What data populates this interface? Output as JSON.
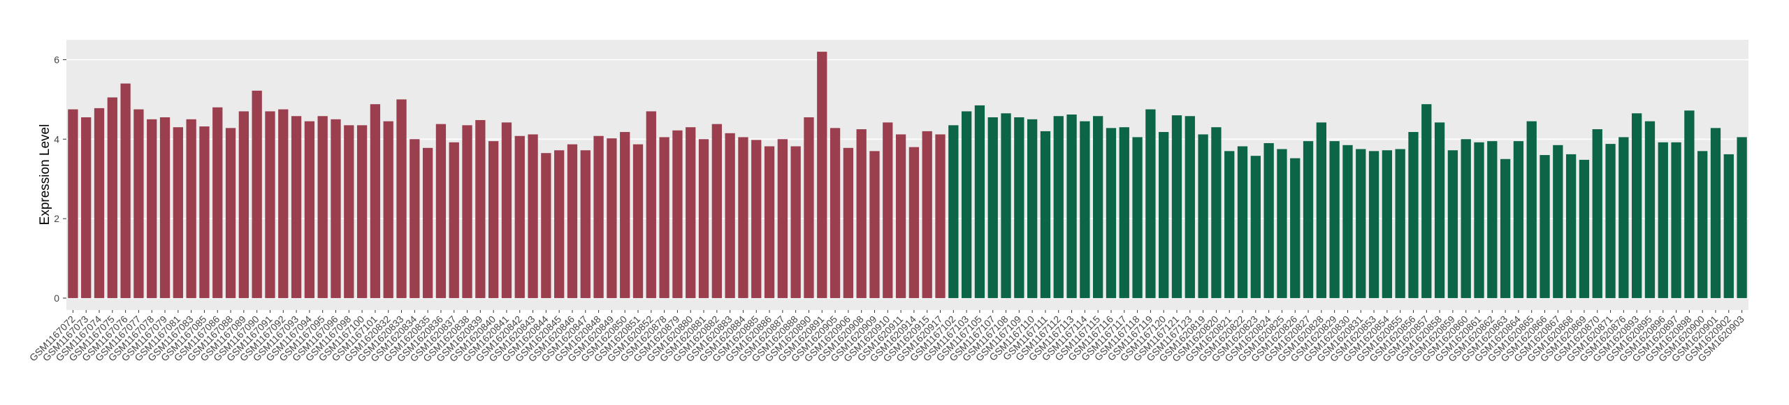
{
  "chart_data": {
    "type": "bar",
    "y_label": "Expression Level",
    "ylim": [
      -0.3,
      6.5
    ],
    "yticks": [
      0,
      2,
      4,
      6
    ],
    "grid": true,
    "series": [
      {
        "color": "#9b3f4f",
        "categories": [
          "GSM1167072",
          "GSM1167073",
          "GSM1167074",
          "GSM1167075",
          "GSM1167076",
          "GSM1167077",
          "GSM1167078",
          "GSM1167079",
          "GSM1167081",
          "GSM1167083",
          "GSM1167085",
          "GSM1167086",
          "GSM1167088",
          "GSM1167089",
          "GSM1167090",
          "GSM1167091",
          "GSM1167092",
          "GSM1167093",
          "GSM1167094",
          "GSM1167095",
          "GSM1167096",
          "GSM1167098",
          "GSM1167100",
          "GSM1167101",
          "GSM1620832",
          "GSM1620833",
          "GSM1620834",
          "GSM1620835",
          "GSM1620836",
          "GSM1620837",
          "GSM1620838",
          "GSM1620839",
          "GSM1620840",
          "GSM1620841",
          "GSM1620842",
          "GSM1620843",
          "GSM1620844",
          "GSM1620845",
          "GSM1620846",
          "GSM1620847",
          "GSM1620848",
          "GSM1620849",
          "GSM1620850",
          "GSM1620851",
          "GSM1620852",
          "GSM1620878",
          "GSM1620879",
          "GSM1620880",
          "GSM1620881",
          "GSM1620882",
          "GSM1620883",
          "GSM1620884",
          "GSM1620885",
          "GSM1620886",
          "GSM1620887",
          "GSM1620888",
          "GSM1620890",
          "GSM1620891",
          "GSM1620905",
          "GSM1620906",
          "GSM1620908",
          "GSM1620909",
          "GSM1620910",
          "GSM1620911",
          "GSM1620914",
          "GSM1620915",
          "GSM1620917"
        ],
        "values": [
          4.75,
          4.55,
          4.78,
          5.05,
          5.4,
          4.75,
          4.5,
          4.55,
          4.3,
          4.5,
          4.32,
          4.8,
          4.28,
          4.7,
          5.22,
          4.7,
          4.75,
          4.58,
          4.45,
          4.58,
          4.5,
          4.35,
          4.35,
          4.88,
          4.45,
          5.0,
          4.0,
          3.78,
          4.38,
          3.92,
          4.35,
          4.48,
          3.95,
          4.42,
          4.08,
          4.12,
          3.65,
          3.72,
          3.87,
          3.72,
          4.08,
          4.02,
          4.18,
          3.87,
          4.7,
          4.05,
          4.22,
          4.3,
          4.0,
          4.38,
          4.15,
          4.05,
          3.98,
          3.82,
          4.0,
          3.82,
          4.55,
          6.2,
          4.28,
          3.78,
          4.25,
          3.7,
          4.42,
          4.12,
          3.8,
          4.2,
          4.12
        ]
      },
      {
        "color": "#0b6546",
        "categories": [
          "GSM1167102",
          "GSM1167103",
          "GSM1167105",
          "GSM1167107",
          "GSM1167108",
          "GSM1167109",
          "GSM1167110",
          "GSM1167111",
          "GSM1167112",
          "GSM1167113",
          "GSM1167114",
          "GSM1167115",
          "GSM1167116",
          "GSM1167117",
          "GSM1167118",
          "GSM1167119",
          "GSM1167120",
          "GSM1167121",
          "GSM1167123",
          "GSM1620819",
          "GSM1620820",
          "GSM1620821",
          "GSM1620822",
          "GSM1620823",
          "GSM1620824",
          "GSM1620825",
          "GSM1620826",
          "GSM1620827",
          "GSM1620828",
          "GSM1620829",
          "GSM1620830",
          "GSM1620831",
          "GSM1620853",
          "GSM1620854",
          "GSM1620855",
          "GSM1620856",
          "GSM1620857",
          "GSM1620858",
          "GSM1620859",
          "GSM1620860",
          "GSM1620861",
          "GSM1620862",
          "GSM1620863",
          "GSM1620864",
          "GSM1620865",
          "GSM1620866",
          "GSM1620867",
          "GSM1620868",
          "GSM1620869",
          "GSM1620870",
          "GSM1620871",
          "GSM1620876",
          "GSM1620893",
          "GSM1620895",
          "GSM1620896",
          "GSM1620897",
          "GSM1620898",
          "GSM1620900",
          "GSM1620901",
          "GSM1620902",
          "GSM1620903"
        ],
        "values": [
          4.35,
          4.7,
          4.85,
          4.55,
          4.65,
          4.55,
          4.5,
          4.2,
          4.58,
          4.62,
          4.45,
          4.58,
          4.28,
          4.3,
          4.05,
          4.75,
          4.18,
          4.6,
          4.58,
          4.12,
          4.3,
          3.7,
          3.82,
          3.58,
          3.9,
          3.75,
          3.52,
          3.95,
          4.42,
          3.95,
          3.85,
          3.75,
          3.7,
          3.72,
          3.75,
          4.18,
          4.88,
          4.42,
          3.72,
          4.0,
          3.92,
          3.95,
          3.5,
          3.95,
          4.45,
          3.6,
          3.85,
          3.62,
          3.48,
          4.25,
          3.88,
          4.05,
          4.65,
          4.45,
          3.92,
          3.92,
          4.72,
          3.7,
          4.28,
          3.62,
          4.05
        ]
      }
    ]
  }
}
